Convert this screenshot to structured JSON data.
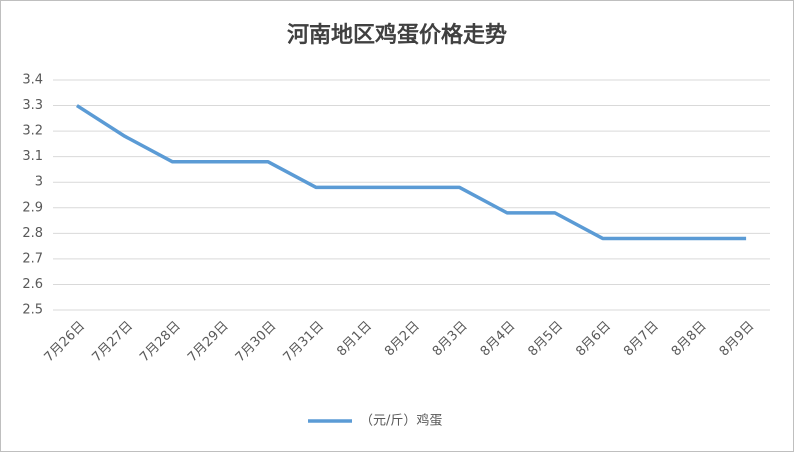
{
  "chart_data": {
    "type": "line",
    "title": "河南地区鸡蛋价格走势",
    "categories": [
      "7月26日",
      "7月27日",
      "7月28日",
      "7月29日",
      "7月30日",
      "7月31日",
      "8月1日",
      "8月2日",
      "8月3日",
      "8月4日",
      "8月5日",
      "8月6日",
      "8月7日",
      "8月8日",
      "8月9日"
    ],
    "series": [
      {
        "name": "（元/斤）鸡蛋",
        "color": "#5b9bd5",
        "values": [
          3.3,
          3.18,
          3.08,
          3.08,
          3.08,
          2.98,
          2.98,
          2.98,
          2.98,
          2.88,
          2.88,
          2.78,
          2.78,
          2.78,
          2.78
        ]
      }
    ],
    "ylim": [
      2.5,
      3.4
    ],
    "yticks": [
      2.5,
      2.6,
      2.7,
      2.8,
      2.9,
      3,
      3.1,
      3.2,
      3.3,
      3.4
    ],
    "grid": true,
    "legend": "bottom"
  }
}
